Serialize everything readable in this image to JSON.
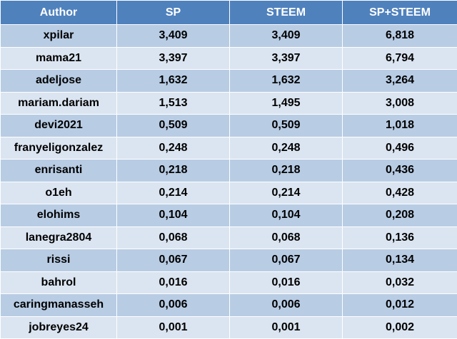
{
  "table": {
    "headers": [
      "Author",
      "SP",
      "STEEM",
      "SP+STEEM"
    ],
    "rows": [
      [
        "xpilar",
        "3,409",
        "3,409",
        "6,818"
      ],
      [
        "mama21",
        "3,397",
        "3,397",
        "6,794"
      ],
      [
        "adeljose",
        "1,632",
        "1,632",
        "3,264"
      ],
      [
        "mariam.dariam",
        "1,513",
        "1,495",
        "3,008"
      ],
      [
        "devi2021",
        "0,509",
        "0,509",
        "1,018"
      ],
      [
        "franyeligonzalez",
        "0,248",
        "0,248",
        "0,496"
      ],
      [
        "enrisanti",
        "0,218",
        "0,218",
        "0,436"
      ],
      [
        "o1eh",
        "0,214",
        "0,214",
        "0,428"
      ],
      [
        "elohims",
        "0,104",
        "0,104",
        "0,208"
      ],
      [
        "lanegra2804",
        "0,068",
        "0,068",
        "0,136"
      ],
      [
        "rissi",
        "0,067",
        "0,067",
        "0,134"
      ],
      [
        "bahrol",
        "0,016",
        "0,016",
        "0,032"
      ],
      [
        "caringmanasseh",
        "0,006",
        "0,006",
        "0,012"
      ],
      [
        "jobreyes24",
        "0,001",
        "0,001",
        "0,002"
      ]
    ]
  },
  "colors": {
    "header_bg": "#4f81bd",
    "row_odd_bg": "#b8cce4",
    "row_even_bg": "#dbe5f1"
  }
}
